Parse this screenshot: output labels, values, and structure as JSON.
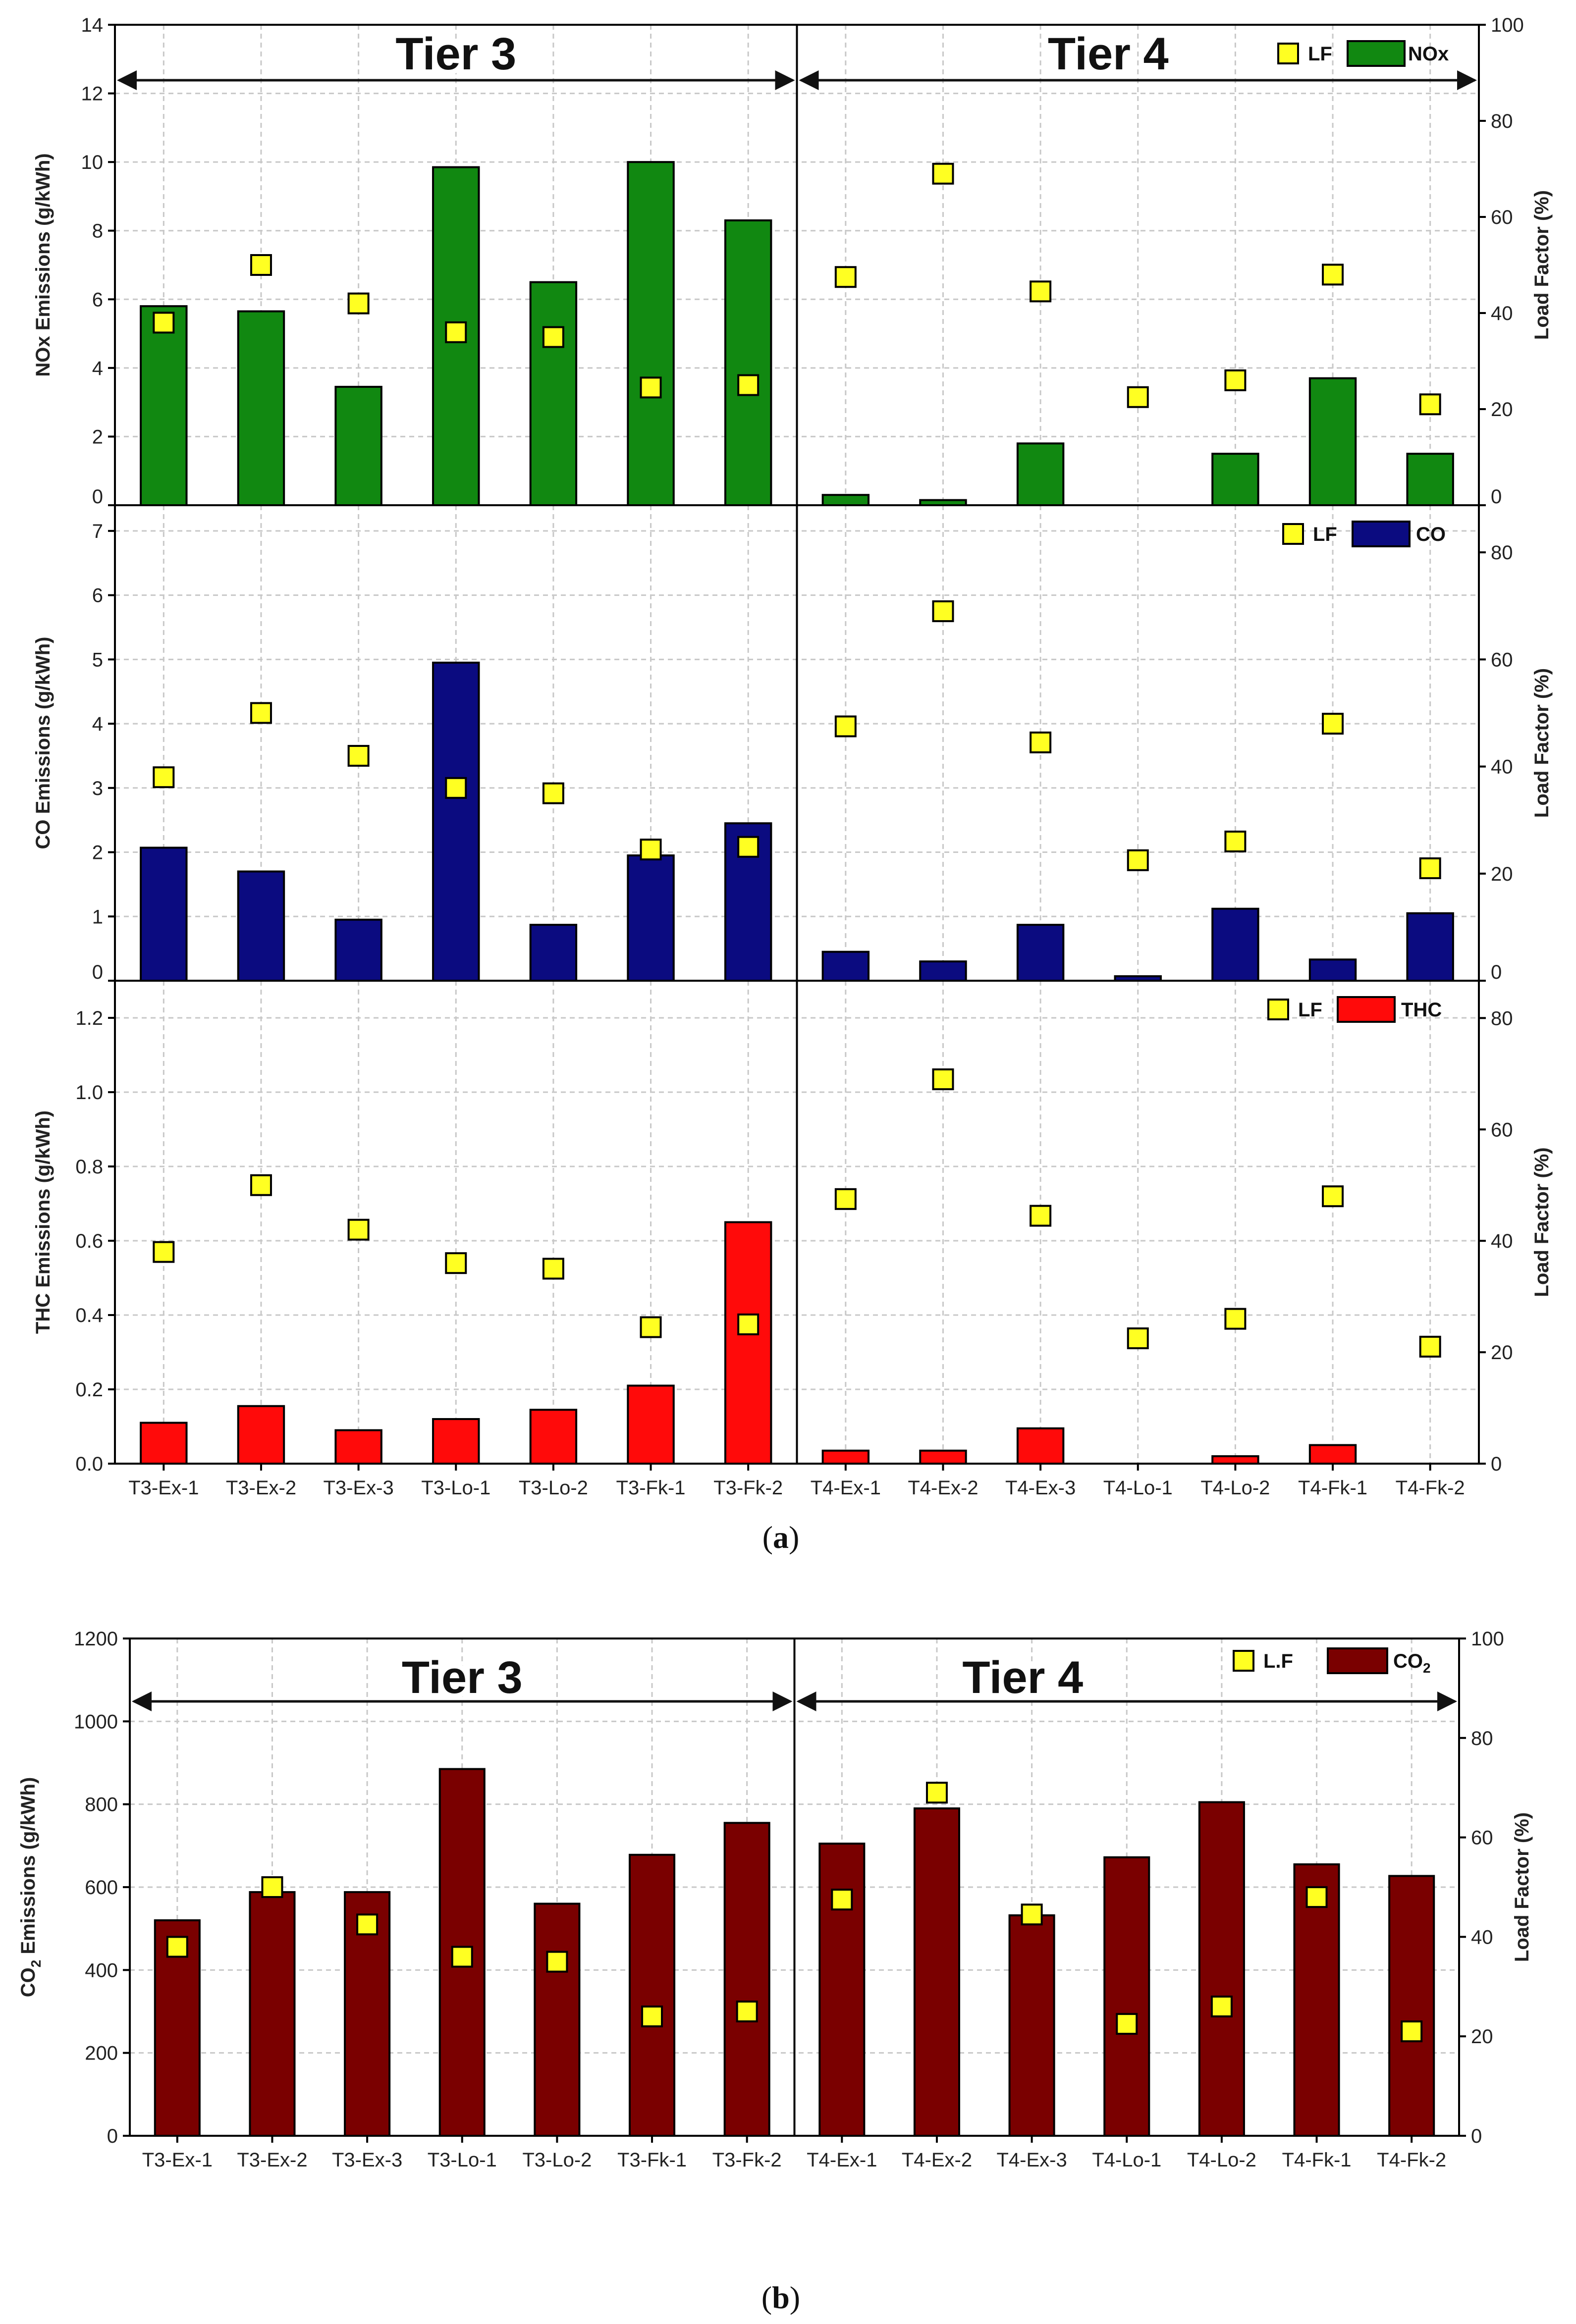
{
  "chart_data": [
    {
      "id": "a",
      "type": "bar",
      "panel_label": "a",
      "tier_labels": [
        "Tier 3",
        "Tier 4"
      ],
      "categories": [
        "T3-Ex-1",
        "T3-Ex-2",
        "T3-Ex-3",
        "T3-Lo-1",
        "T3-Lo-2",
        "T3-Fk-1",
        "T3-Fk-2",
        "T4-Ex-1",
        "T4-Ex-2",
        "T4-Ex-3",
        "T4-Lo-1",
        "T4-Lo-2",
        "T4-Fk-1",
        "T4-Fk-2"
      ],
      "subplots": [
        {
          "ylabel": "NOx Emissions (g/kWh)",
          "y2label": "Load Factor (%)",
          "ylim": [
            0,
            14
          ],
          "yticks": [
            0,
            2,
            4,
            6,
            8,
            10,
            12,
            14
          ],
          "y2lim": [
            0,
            100
          ],
          "y2ticks": [
            0,
            20,
            40,
            60,
            80,
            100
          ],
          "legend": {
            "marker": "LF",
            "bar": "NOx"
          },
          "bar_color": "#118811",
          "values": [
            5.8,
            5.65,
            3.45,
            9.85,
            6.5,
            10.0,
            8.3,
            0.3,
            0.15,
            1.8,
            0.0,
            1.5,
            3.7,
            1.5
          ],
          "load_factor": [
            38,
            50,
            42,
            36,
            35,
            24.5,
            25,
            47.5,
            69,
            44.5,
            22.5,
            26,
            48,
            21
          ]
        },
        {
          "ylabel": "CO Emissions (g/kWh)",
          "y2label": "Load Factor (%)",
          "ylim": [
            0,
            7.4
          ],
          "yticks": [
            0,
            1,
            2,
            3,
            4,
            5,
            6,
            7
          ],
          "y2lim": [
            0,
            88.8
          ],
          "y2ticks": [
            0,
            20,
            40,
            60,
            80
          ],
          "legend": {
            "marker": "LF",
            "bar": "CO"
          },
          "bar_color": "#0b0b80",
          "values": [
            2.07,
            1.7,
            0.95,
            4.95,
            0.87,
            1.95,
            2.45,
            0.45,
            0.3,
            0.87,
            0.07,
            1.12,
            0.33,
            1.05
          ],
          "load_factor": [
            38,
            50,
            42,
            36,
            35,
            24.5,
            25,
            47.5,
            69,
            44.5,
            22.5,
            26,
            48,
            21
          ]
        },
        {
          "ylabel": "THC Emissions (g/kWh)",
          "y2label": "Load Factor (%)",
          "ylim": [
            0,
            1.3
          ],
          "yticks": [
            0.0,
            0.2,
            0.4,
            0.6,
            0.8,
            1.0,
            1.2
          ],
          "y2lim": [
            0,
            86.7
          ],
          "y2ticks": [
            0,
            20,
            40,
            60,
            80
          ],
          "legend": {
            "marker": "LF",
            "bar": "THC"
          },
          "bar_color": "#ff0a0a",
          "values": [
            0.11,
            0.155,
            0.09,
            0.12,
            0.145,
            0.21,
            0.65,
            0.035,
            0.035,
            0.095,
            0.0,
            0.02,
            0.05,
            0.0
          ],
          "load_factor": [
            38,
            50,
            42,
            36,
            35,
            24.5,
            25,
            47.5,
            69,
            44.5,
            22.5,
            26,
            48,
            21
          ]
        }
      ]
    },
    {
      "id": "b",
      "type": "bar",
      "panel_label": "b",
      "tier_labels": [
        "Tier 3",
        "Tier 4"
      ],
      "categories": [
        "T3-Ex-1",
        "T3-Ex-2",
        "T3-Ex-3",
        "T3-Lo-1",
        "T3-Lo-2",
        "T3-Fk-1",
        "T3-Fk-2",
        "T4-Ex-1",
        "T4-Ex-2",
        "T4-Ex-3",
        "T4-Lo-1",
        "T4-Lo-2",
        "T4-Fk-1",
        "T4-Fk-2"
      ],
      "subplots": [
        {
          "ylabel": "CO2 Emissions (g/kWh)",
          "ylabel_main": "CO",
          "ylabel_sub": "2",
          "ylabel_rest": " Emissions (g/kWh)",
          "y2label": "Load Factor (%)",
          "ylim": [
            0,
            1200
          ],
          "yticks": [
            0,
            200,
            400,
            600,
            800,
            1000,
            1200
          ],
          "y2lim": [
            0,
            100
          ],
          "y2ticks": [
            0,
            20,
            40,
            60,
            80,
            100
          ],
          "legend": {
            "marker": "L.F",
            "bar_main": "CO",
            "bar_sub": "2"
          },
          "bar_color": "#7a0000",
          "values": [
            520,
            588,
            588,
            885,
            560,
            678,
            755,
            705,
            790,
            532,
            672,
            805,
            655,
            627
          ],
          "load_factor": [
            38,
            50,
            42.5,
            36,
            35,
            24,
            25,
            47.5,
            69,
            44.5,
            22.5,
            26,
            48,
            21
          ]
        }
      ]
    }
  ]
}
